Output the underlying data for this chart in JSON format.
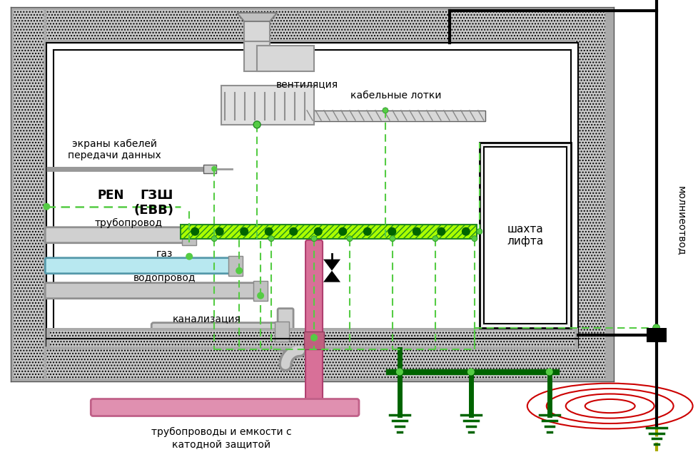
{
  "bg_color": "#ffffff",
  "wall_color": "#aaaaaa",
  "wall_hatch": "#c8c8c8",
  "green_bus_color": "#aaff00",
  "green_bus_dot": "#006400",
  "dashed_green": "#55cc44",
  "dark_green": "#006400",
  "black_wire": "#000000",
  "red_ring": "#cc0000",
  "pipe_gray_light": "#d0d0d0",
  "pipe_gray": "#b8b8b8",
  "pipe_blue": "#b0e8ee",
  "pipe_pink": "#e090b0",
  "labels": {
    "ventilation": "вентиляция",
    "cable_trays": "кабельные лотки",
    "cable_screens": "экраны кабелей\nпередачи данных",
    "PEN": "PEN",
    "truboprovod": "трубопровод",
    "gaz": "газ",
    "vodoprovod": "водопровод",
    "kanalizatsiya": "канализация",
    "GSH": "ГЗШ\n(ЕВВ)",
    "shahta": "шахта\nлифта",
    "molnieotvod": "молниеотвод",
    "katod": "трубопроводы и емкости с\nкатодной защитой"
  }
}
